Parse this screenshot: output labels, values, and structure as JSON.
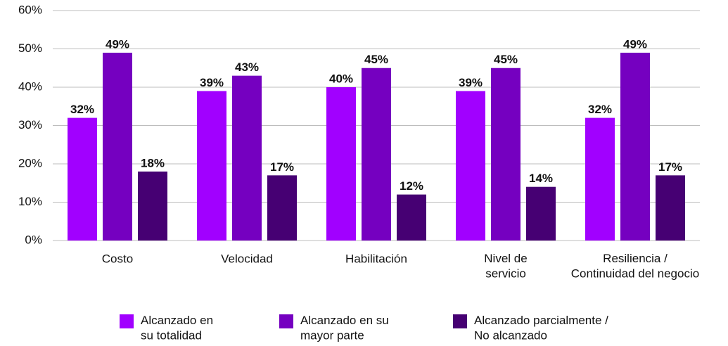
{
  "chart_data": {
    "type": "bar",
    "categories": [
      "Costo",
      "Velocidad",
      "Habilitación",
      "Nivel de\nservicio",
      "Resiliencia /\nContinuidad del negocio"
    ],
    "series": [
      {
        "name": "Alcanzado en\nsu totalidad",
        "color": "#a100ff",
        "values": [
          32,
          39,
          40,
          39,
          32
        ],
        "value_labels": [
          "32%",
          "39%",
          "40%",
          "39%",
          "32%"
        ]
      },
      {
        "name": "Alcanzado en su\nmayor parte",
        "color": "#7500c0",
        "values": [
          49,
          43,
          45,
          45,
          49
        ],
        "value_labels": [
          "49%",
          "43%",
          "45%",
          "45%",
          "49%"
        ]
      },
      {
        "name": "Alcanzado parcialmente /\nNo alcanzado",
        "color": "#460073",
        "values": [
          18,
          17,
          12,
          14,
          17
        ],
        "value_labels": [
          "18%",
          "17%",
          "12%",
          "14%",
          "17%"
        ]
      }
    ],
    "ylim": [
      0,
      60
    ],
    "yticks": [
      {
        "value": 0,
        "label": "0%"
      },
      {
        "value": 10,
        "label": "10%"
      },
      {
        "value": 20,
        "label": "20%"
      },
      {
        "value": 30,
        "label": "30%"
      },
      {
        "value": 40,
        "label": "40%"
      },
      {
        "value": 50,
        "label": "50%"
      },
      {
        "value": 60,
        "label": "60%"
      }
    ],
    "grid": true,
    "legend": "bottom"
  }
}
